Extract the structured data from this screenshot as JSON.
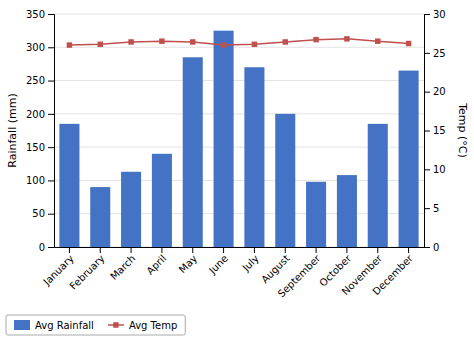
{
  "chart_data": {
    "type": "bar",
    "categories": [
      "January",
      "February",
      "March",
      "April",
      "May",
      "June",
      "July",
      "August",
      "September",
      "October",
      "November",
      "December"
    ],
    "series": [
      {
        "name": "Avg Rainfall",
        "type": "bar",
        "color": "#4472C4",
        "values": [
          185,
          90,
          113,
          140,
          285,
          325,
          270,
          200,
          98,
          108,
          185,
          265
        ]
      },
      {
        "name": "Avg Temp",
        "type": "line",
        "color": "#C0504D",
        "marker": "square",
        "axis": "y2",
        "values": [
          26.0,
          26.1,
          26.4,
          26.5,
          26.4,
          26.0,
          26.1,
          26.4,
          26.7,
          26.8,
          26.5,
          26.2
        ]
      }
    ],
    "ylabel": "Rainfall (mm)",
    "y2label": "Temp (°C)",
    "ylim": [
      0,
      350
    ],
    "yticks": [
      0,
      50,
      100,
      150,
      200,
      250,
      300,
      350
    ],
    "y2lim": [
      0,
      30
    ],
    "y2ticks": [
      0,
      5,
      10,
      15,
      20,
      25,
      30
    ],
    "grid": true,
    "legend": "lower left"
  }
}
